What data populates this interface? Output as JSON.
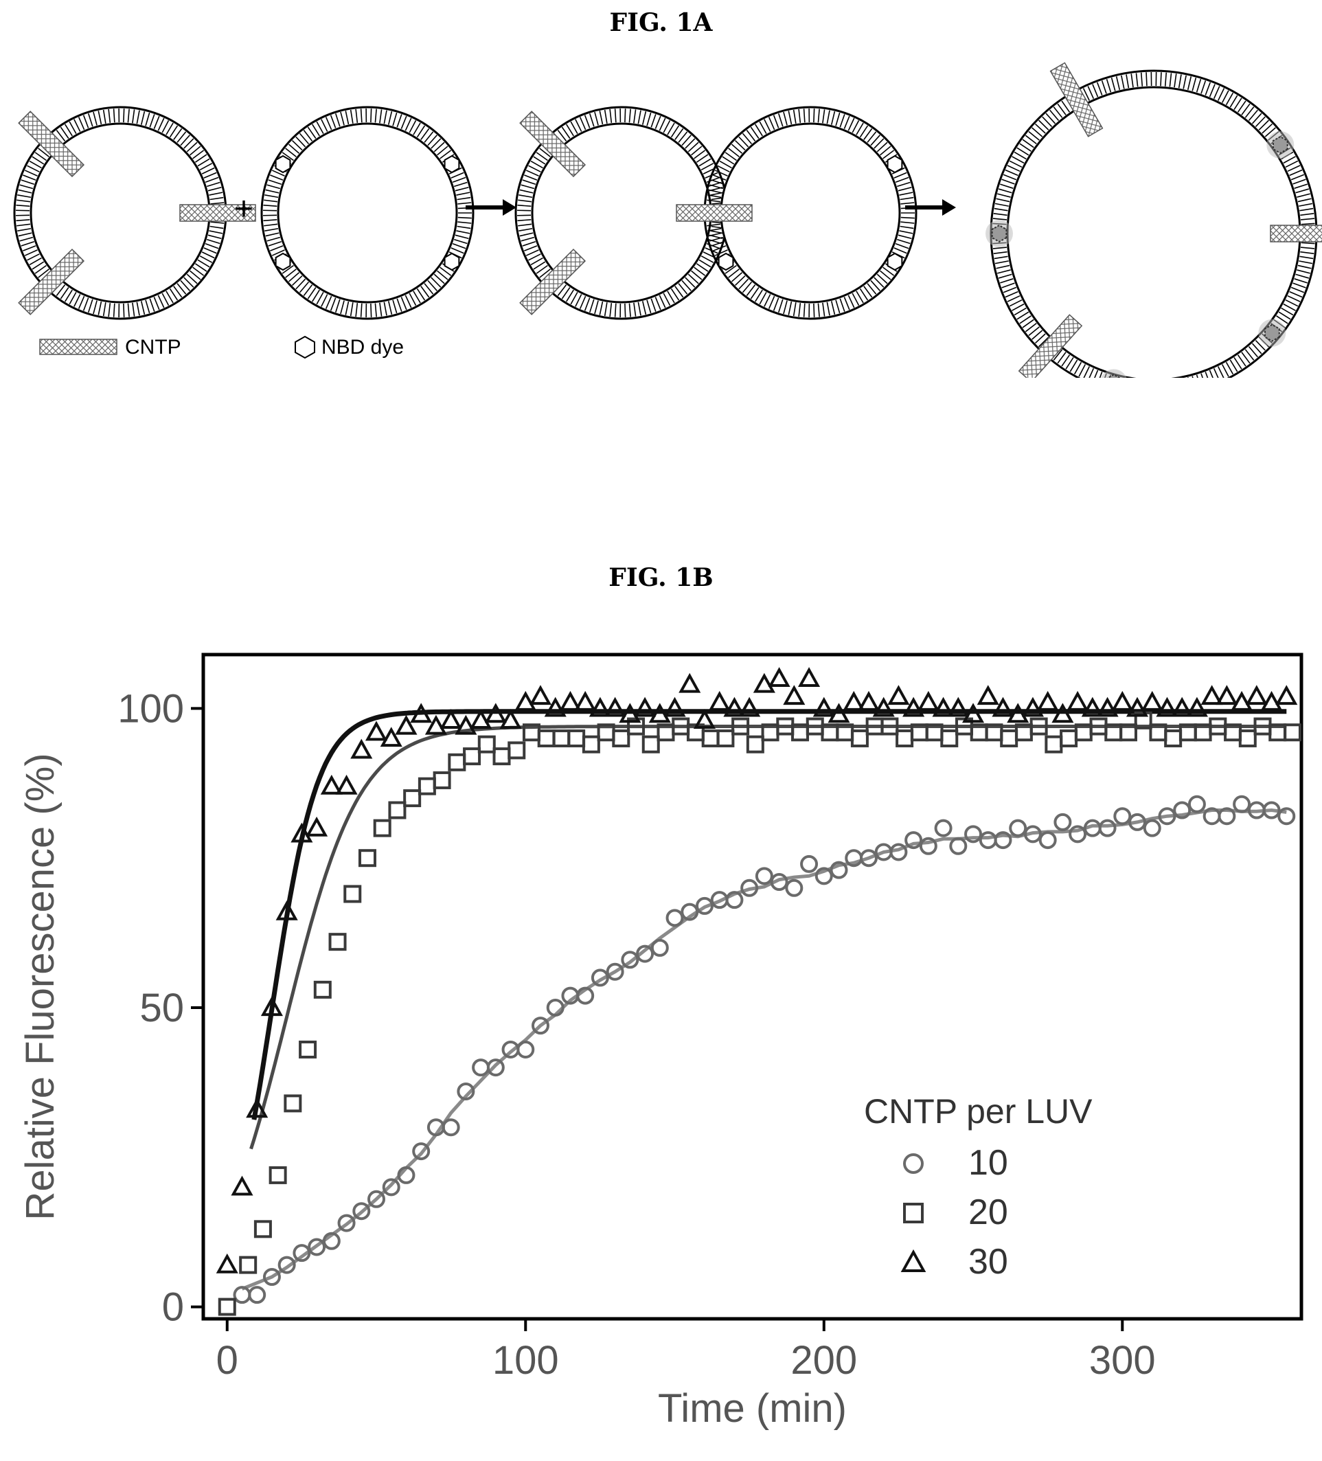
{
  "figure_a": {
    "label": "FIG. 1A",
    "legend": {
      "cntp_label": "CNTP",
      "dye_label": "NBD dye"
    },
    "plus_sign": "+"
  },
  "figure_b": {
    "label": "FIG. 1B"
  },
  "chart_data": {
    "type": "scatter",
    "title": "",
    "xlabel": "Time (min)",
    "ylabel": "Relative Fluorescence (%)",
    "xlim": [
      -8,
      360
    ],
    "ylim": [
      -2,
      109
    ],
    "x_ticks": [
      0,
      100,
      200,
      300
    ],
    "y_ticks": [
      0,
      50,
      100
    ],
    "grid": false,
    "legend_title": "CNTP per LUV",
    "legend_position": "bottom-right",
    "series": [
      {
        "name": "10",
        "marker": "circle",
        "color": "#6a6a6a",
        "fit_color": "#8a8a8a",
        "x": [
          5,
          10,
          15,
          20,
          25,
          30,
          35,
          40,
          45,
          50,
          55,
          60,
          65,
          70,
          75,
          80,
          85,
          90,
          95,
          100,
          105,
          110,
          115,
          120,
          125,
          130,
          135,
          140,
          145,
          150,
          155,
          160,
          165,
          170,
          175,
          180,
          185,
          190,
          195,
          200,
          205,
          210,
          215,
          220,
          225,
          230,
          235,
          240,
          245,
          250,
          255,
          260,
          265,
          270,
          275,
          280,
          285,
          290,
          295,
          300,
          305,
          310,
          315,
          320,
          325,
          330,
          335,
          340,
          345,
          350,
          355
        ],
        "y": [
          2,
          2,
          5,
          7,
          9,
          10,
          11,
          14,
          16,
          18,
          20,
          22,
          26,
          30,
          30,
          36,
          40,
          40,
          43,
          43,
          47,
          50,
          52,
          52,
          55,
          56,
          58,
          59,
          60,
          65,
          66,
          67,
          68,
          68,
          70,
          72,
          71,
          70,
          74,
          72,
          73,
          75,
          75,
          76,
          76,
          78,
          77,
          80,
          77,
          79,
          78,
          78,
          80,
          79,
          78,
          81,
          79,
          80,
          80,
          82,
          81,
          80,
          82,
          83,
          84,
          82,
          82,
          84,
          83,
          83,
          82
        ]
      },
      {
        "name": "20",
        "marker": "square",
        "color": "#3a3a3a",
        "fit_color": "#4a4a4a",
        "x": [
          0,
          7,
          12,
          17,
          22,
          27,
          32,
          37,
          42,
          47,
          52,
          57,
          62,
          67,
          72,
          77,
          82,
          87,
          92,
          97,
          102,
          107,
          112,
          117,
          122,
          127,
          132,
          137,
          142,
          147,
          152,
          157,
          162,
          167,
          172,
          177,
          182,
          187,
          192,
          197,
          202,
          207,
          212,
          217,
          222,
          227,
          232,
          237,
          242,
          247,
          252,
          257,
          262,
          267,
          272,
          277,
          282,
          287,
          292,
          297,
          302,
          307,
          312,
          317,
          322,
          327,
          332,
          337,
          342,
          347,
          352,
          357
        ],
        "y": [
          0,
          7,
          13,
          22,
          34,
          43,
          53,
          61,
          69,
          75,
          80,
          83,
          85,
          87,
          88,
          91,
          92,
          94,
          92,
          93,
          96,
          95,
          95,
          95,
          94,
          96,
          95,
          97,
          94,
          96,
          97,
          96,
          95,
          95,
          97,
          94,
          96,
          97,
          96,
          97,
          96,
          96,
          95,
          97,
          97,
          95,
          96,
          96,
          95,
          97,
          96,
          96,
          95,
          96,
          97,
          94,
          95,
          96,
          97,
          96,
          96,
          98,
          96,
          95,
          96,
          96,
          97,
          96,
          95,
          97,
          96,
          96
        ],
        "fit": {
          "type": "sigmoid_rise",
          "plateau": 97,
          "t0": 20,
          "k": 0.082,
          "x_start": 8
        }
      },
      {
        "name": "30",
        "marker": "triangle",
        "color": "#111111",
        "fit_color": "#111111",
        "x": [
          0,
          5,
          10,
          15,
          20,
          25,
          30,
          35,
          40,
          45,
          50,
          55,
          60,
          65,
          70,
          75,
          80,
          85,
          90,
          95,
          100,
          105,
          110,
          115,
          120,
          125,
          130,
          135,
          140,
          145,
          150,
          155,
          160,
          165,
          170,
          175,
          180,
          185,
          190,
          195,
          200,
          205,
          210,
          215,
          220,
          225,
          230,
          235,
          240,
          245,
          250,
          255,
          260,
          265,
          270,
          275,
          280,
          285,
          290,
          295,
          300,
          305,
          310,
          315,
          320,
          325,
          330,
          335,
          340,
          345,
          350,
          355
        ],
        "y": [
          7,
          20,
          33,
          50,
          66,
          79,
          80,
          87,
          87,
          93,
          96,
          95,
          97,
          99,
          97,
          98,
          97,
          98,
          99,
          98,
          101,
          102,
          100,
          101,
          101,
          100,
          100,
          99,
          100,
          99,
          100,
          104,
          98,
          101,
          100,
          100,
          104,
          105,
          102,
          105,
          100,
          99,
          101,
          101,
          100,
          102,
          100,
          101,
          100,
          100,
          99,
          102,
          100,
          99,
          100,
          101,
          99,
          101,
          100,
          100,
          101,
          100,
          101,
          100,
          100,
          100,
          102,
          102,
          101,
          102,
          101,
          102
        ],
        "fit": {
          "type": "sigmoid_rise",
          "plateau": 99.5,
          "t0": 15,
          "k": 0.13,
          "x_start": 9
        }
      }
    ]
  }
}
